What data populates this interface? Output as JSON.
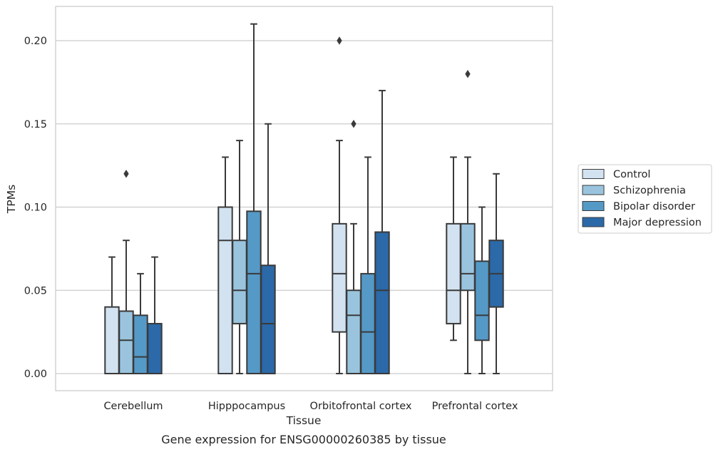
{
  "chart_data": {
    "type": "boxplot",
    "xlabel": "Tissue",
    "ylabel": "TPMs",
    "caption": "Gene expression for ENSG00000260385 by tissue",
    "ylim": [
      -0.01,
      0.221
    ],
    "yticks": [
      0.0,
      0.05,
      0.1,
      0.15,
      0.2
    ],
    "ytick_labels": [
      "0.00",
      "0.05",
      "0.10",
      "0.15",
      "0.20"
    ],
    "grid": "horizontal",
    "legend_position": "right",
    "categories": [
      "Cerebellum",
      "Hipppocampus",
      "Orbitofrontal cortex",
      "Prefrontal cortex"
    ],
    "series": [
      {
        "name": "Control",
        "color": "#d2e2f1",
        "boxes": [
          {
            "whisker_low": 0.0,
            "q1": 0.0,
            "median": 0.0,
            "q3": 0.04,
            "whisker_high": 0.07,
            "outliers": []
          },
          {
            "whisker_low": 0.0,
            "q1": 0.0,
            "median": 0.08,
            "q3": 0.1,
            "whisker_high": 0.13,
            "outliers": []
          },
          {
            "whisker_low": 0.0,
            "q1": 0.025,
            "median": 0.06,
            "q3": 0.09,
            "whisker_high": 0.14,
            "outliers": [
              0.2
            ]
          },
          {
            "whisker_low": 0.02,
            "q1": 0.03,
            "median": 0.05,
            "q3": 0.09,
            "whisker_high": 0.13,
            "outliers": []
          }
        ]
      },
      {
        "name": "Schizophrenia",
        "color": "#9ac4de",
        "boxes": [
          {
            "whisker_low": 0.0,
            "q1": 0.0,
            "median": 0.02,
            "q3": 0.0375,
            "whisker_high": 0.08,
            "outliers": [
              0.12
            ]
          },
          {
            "whisker_low": 0.0,
            "q1": 0.03,
            "median": 0.05,
            "q3": 0.08,
            "whisker_high": 0.14,
            "outliers": []
          },
          {
            "whisker_low": 0.0,
            "q1": 0.0,
            "median": 0.035,
            "q3": 0.05,
            "whisker_high": 0.09,
            "outliers": [
              0.15
            ]
          },
          {
            "whisker_low": 0.0,
            "q1": 0.05,
            "median": 0.06,
            "q3": 0.09,
            "whisker_high": 0.13,
            "outliers": [
              0.18
            ]
          }
        ]
      },
      {
        "name": "Bipolar disorder",
        "color": "#5599c7",
        "boxes": [
          {
            "whisker_low": 0.0,
            "q1": 0.0,
            "median": 0.01,
            "q3": 0.035,
            "whisker_high": 0.06,
            "outliers": []
          },
          {
            "whisker_low": 0.0,
            "q1": 0.0,
            "median": 0.06,
            "q3": 0.0975,
            "whisker_high": 0.21,
            "outliers": []
          },
          {
            "whisker_low": 0.0,
            "q1": 0.0,
            "median": 0.025,
            "q3": 0.06,
            "whisker_high": 0.13,
            "outliers": []
          },
          {
            "whisker_low": 0.0,
            "q1": 0.02,
            "median": 0.035,
            "q3": 0.0675,
            "whisker_high": 0.1,
            "outliers": []
          }
        ]
      },
      {
        "name": "Major depression",
        "color": "#2b69a8",
        "boxes": [
          {
            "whisker_low": 0.0,
            "q1": 0.0,
            "median": 0.0,
            "q3": 0.03,
            "whisker_high": 0.07,
            "outliers": []
          },
          {
            "whisker_low": 0.0,
            "q1": 0.0,
            "median": 0.03,
            "q3": 0.065,
            "whisker_high": 0.15,
            "outliers": []
          },
          {
            "whisker_low": 0.0,
            "q1": 0.0,
            "median": 0.05,
            "q3": 0.085,
            "whisker_high": 0.17,
            "outliers": []
          },
          {
            "whisker_low": 0.0,
            "q1": 0.04,
            "median": 0.06,
            "q3": 0.08,
            "whisker_high": 0.12,
            "outliers": []
          }
        ]
      }
    ],
    "colors": {
      "grid": "#cccccc",
      "frame": "#cccccc",
      "edge": "#3a3a3a",
      "text": "#262626"
    }
  }
}
